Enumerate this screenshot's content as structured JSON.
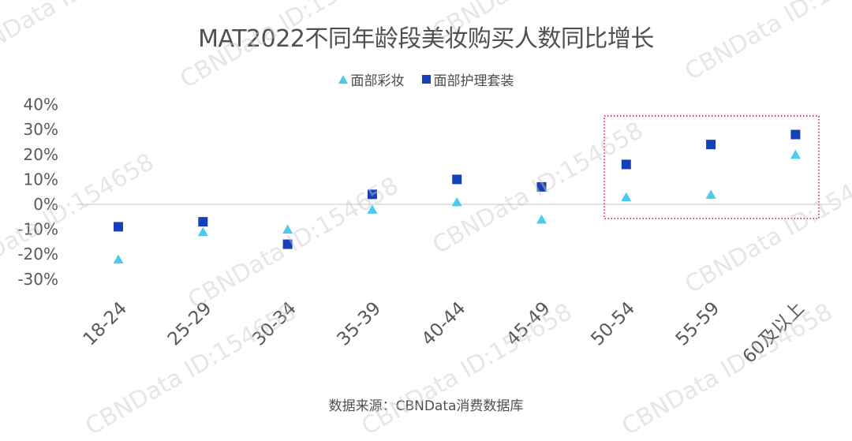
{
  "title": "MAT2022不同年龄段美妆购买人数同比增长",
  "legend": {
    "series1": "面部彩妆",
    "series2": "面部护理套装"
  },
  "source": "数据来源：CBNData消费数据库",
  "watermark": "CBNData ID:154658",
  "colors": {
    "series1": "#4DC9F0",
    "series2": "#1540B8",
    "highlight_box": "#E0457A",
    "zero_line": "#D9D9D9"
  },
  "chart_data": {
    "type": "scatter",
    "title": "MAT2022不同年龄段美妆购买人数同比增长",
    "xlabel": "",
    "ylabel": "",
    "categories": [
      "18-24",
      "25-29",
      "30-34",
      "35-39",
      "40-44",
      "45-49",
      "50-54",
      "55-59",
      "60及以上"
    ],
    "series": [
      {
        "name": "面部彩妆",
        "marker": "triangle",
        "values": [
          -22,
          -11,
          -10,
          -2,
          1,
          -6,
          3,
          4,
          20
        ]
      },
      {
        "name": "面部护理套装",
        "marker": "square",
        "values": [
          -9,
          -7,
          -16,
          4,
          10,
          7,
          16,
          24,
          28
        ]
      }
    ],
    "y_ticks": [
      "40%",
      "30%",
      "20%",
      "10%",
      "0%",
      "-10%",
      "-20%",
      "-30%"
    ],
    "ylim": [
      -30,
      40
    ],
    "grid": false,
    "legend_position": "top",
    "annotation": "dotted red box highlighting 50-54, 55-59, 60及以上"
  }
}
